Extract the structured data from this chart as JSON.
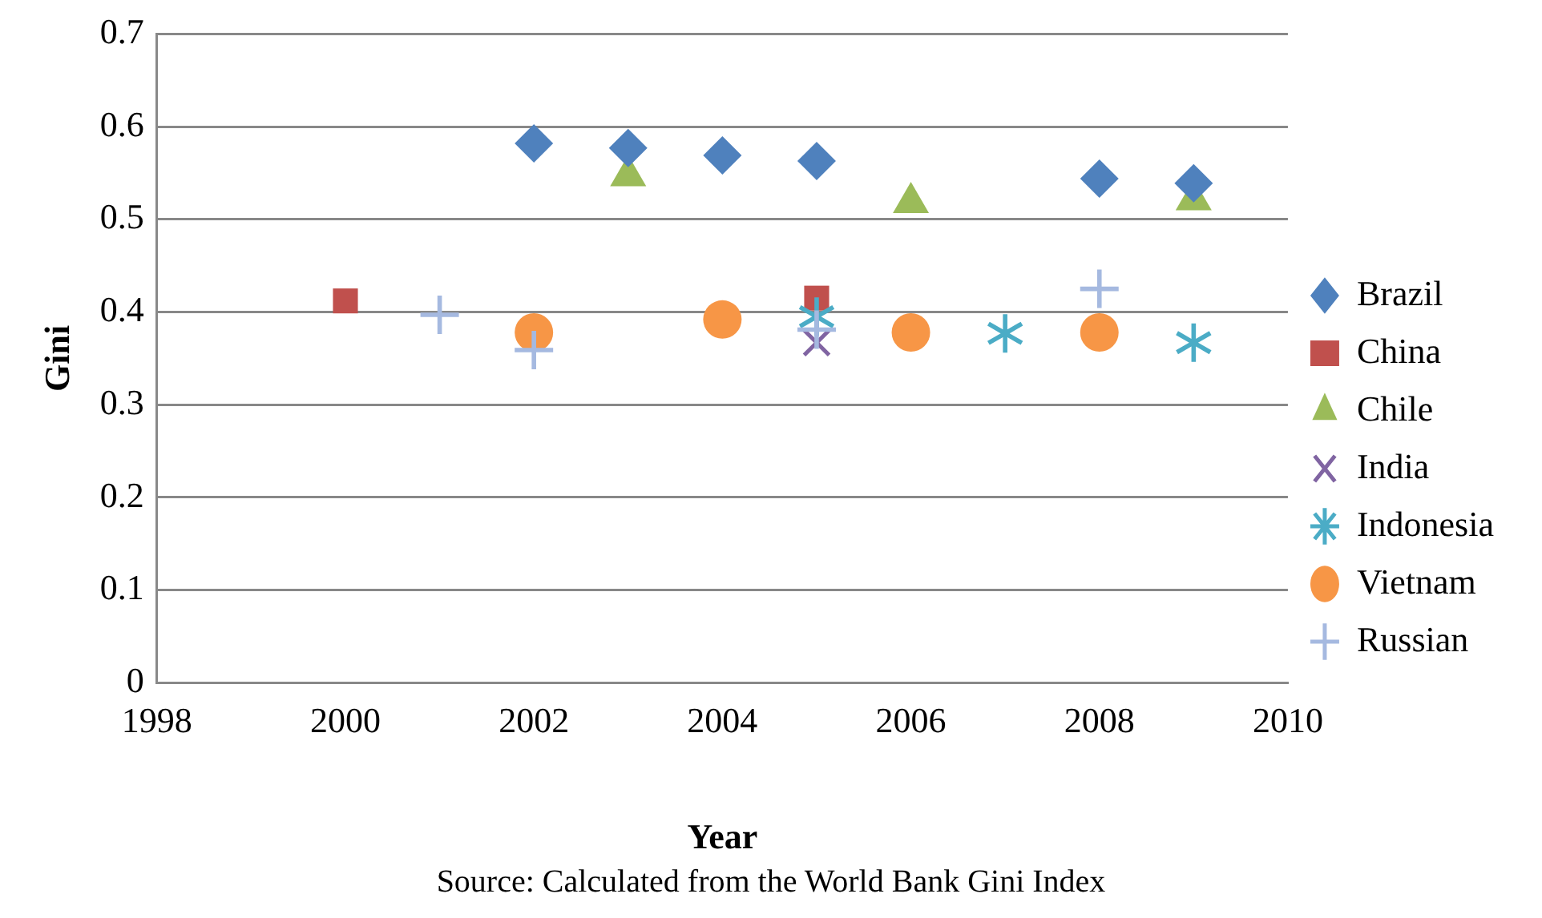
{
  "chart_data": {
    "type": "scatter",
    "xlabel": "Year",
    "ylabel": "Gini",
    "annotations": [
      "Source: Calculated from the World Bank Gini Index"
    ],
    "xlim": [
      1998,
      2010
    ],
    "xticks": [
      1998,
      2000,
      2002,
      2004,
      2006,
      2008,
      2010
    ],
    "ylim": [
      0,
      0.7
    ],
    "yticks": [
      0,
      0.1,
      0.2,
      0.3,
      0.4,
      0.5,
      0.6,
      0.7
    ],
    "grid": "y",
    "legend": "right",
    "series": [
      {
        "name": "Brazil",
        "color": "#4f81bd",
        "marker": "diamond",
        "x": [
          2002,
          2003,
          2004,
          2005,
          2008,
          2009
        ],
        "values": [
          0.582,
          0.577,
          0.569,
          0.563,
          0.544,
          0.539
        ]
      },
      {
        "name": "China",
        "color": "#c0504d",
        "marker": "square",
        "x": [
          2000,
          2005
        ],
        "values": [
          0.412,
          0.415
        ]
      },
      {
        "name": "Chile",
        "color": "#9bbb59",
        "marker": "triangle",
        "x": [
          2003,
          2006,
          2009
        ],
        "values": [
          0.547,
          0.518,
          0.521
        ]
      },
      {
        "name": "India",
        "color": "#8064a2",
        "marker": "cross",
        "x": [
          2005
        ],
        "values": [
          0.367
        ]
      },
      {
        "name": "Indonesia",
        "color": "#4bacc6",
        "marker": "star",
        "x": [
          2005,
          2007,
          2009
        ],
        "values": [
          0.395,
          0.377,
          0.367
        ]
      },
      {
        "name": "Vietnam",
        "color": "#f79646",
        "marker": "circle",
        "x": [
          2002,
          2004,
          2006,
          2008
        ],
        "values": [
          0.378,
          0.392,
          0.378,
          0.378
        ]
      },
      {
        "name": "Russian",
        "color": "#a5b9e0",
        "marker": "plus",
        "x": [
          2001,
          2002,
          2005,
          2008
        ],
        "values": [
          0.397,
          0.359,
          0.381,
          0.425
        ]
      }
    ]
  }
}
